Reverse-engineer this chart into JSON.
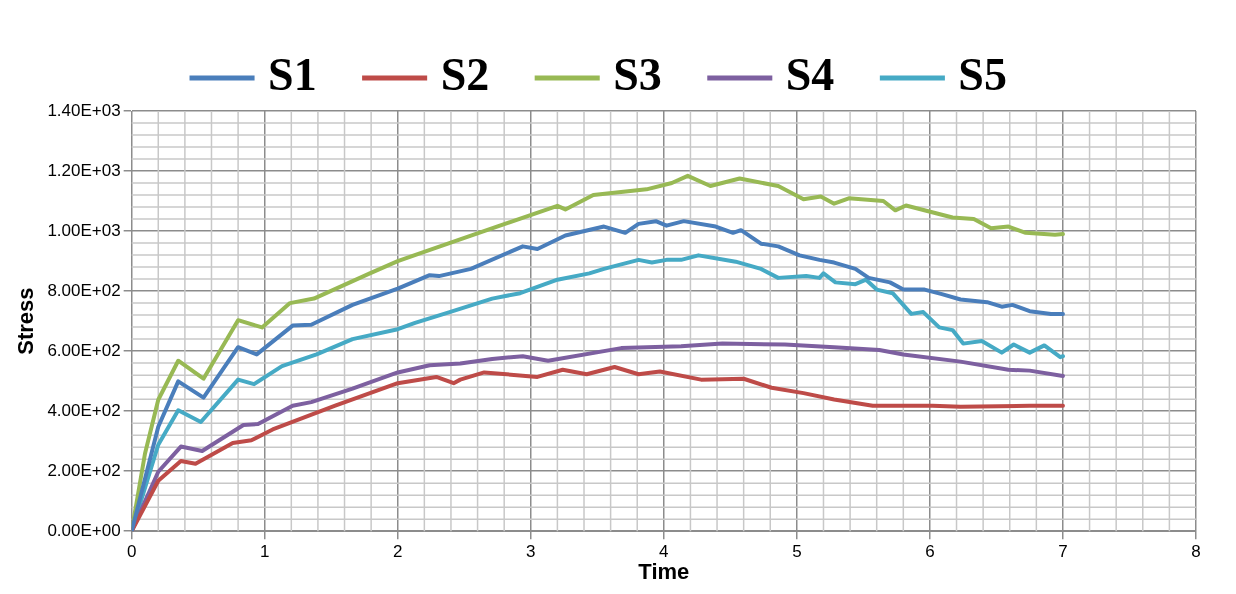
{
  "chart_data": {
    "type": "line",
    "xlabel": "Time",
    "ylabel": "Stress",
    "legend": "top",
    "grid": true,
    "marker": "none",
    "line_style": "solid",
    "xlim": [
      0,
      8
    ],
    "xticks": [
      0,
      1,
      2,
      3,
      4,
      5,
      6,
      7,
      8
    ],
    "ylim": [
      0,
      1400
    ],
    "yticks": [
      {
        "value": 0,
        "label": "0.00E+00"
      },
      {
        "value": 200,
        "label": "2.00E+02"
      },
      {
        "value": 400,
        "label": "4.00E+02"
      },
      {
        "value": 600,
        "label": "6.00E+02"
      },
      {
        "value": 800,
        "label": "8.00E+02"
      },
      {
        "value": 1000,
        "label": "1.00E+03"
      },
      {
        "value": 1200,
        "label": "1.20E+03"
      },
      {
        "value": 1400,
        "label": "1.40E+03"
      }
    ],
    "series": [
      {
        "name": "S1",
        "color": "#4a7ebb",
        "x": [
          0,
          0.2,
          0.35,
          0.54,
          0.8,
          0.94,
          1.21,
          1.35,
          1.66,
          2.0,
          2.24,
          2.31,
          2.55,
          2.94,
          3.05,
          3.26,
          3.55,
          3.71,
          3.81,
          3.94,
          4.02,
          4.15,
          4.39,
          4.52,
          4.58,
          4.73,
          4.86,
          5.02,
          5.17,
          5.28,
          5.44,
          5.54,
          5.7,
          5.8,
          5.96,
          6.09,
          6.23,
          6.43,
          6.54,
          6.62,
          6.75,
          6.91,
          7.0
        ],
        "values": [
          0,
          348,
          499,
          445,
          613,
          589,
          685,
          688,
          754,
          808,
          853,
          850,
          874,
          949,
          940,
          985,
          1015,
          994,
          1024,
          1033,
          1018,
          1033,
          1015,
          994,
          1003,
          958,
          949,
          919,
          904,
          895,
          874,
          844,
          829,
          805,
          805,
          790,
          772,
          763,
          748,
          754,
          733,
          724,
          724
        ]
      },
      {
        "name": "S2",
        "color": "#be4b48",
        "x": [
          0,
          0.2,
          0.37,
          0.48,
          0.76,
          0.9,
          1.06,
          1.53,
          2.0,
          2.29,
          2.42,
          2.47,
          2.65,
          3.05,
          3.24,
          3.42,
          3.63,
          3.81,
          3.97,
          4.28,
          4.6,
          4.81,
          5.05,
          5.28,
          5.57,
          6.02,
          6.23,
          6.75,
          7.0
        ],
        "values": [
          0,
          168,
          234,
          225,
          294,
          303,
          339,
          418,
          493,
          514,
          493,
          505,
          529,
          514,
          538,
          523,
          547,
          523,
          532,
          505,
          508,
          478,
          460,
          439,
          418,
          418,
          415,
          418,
          418
        ]
      },
      {
        "name": "S3",
        "color": "#98b954",
        "x": [
          0,
          0.1,
          0.2,
          0.35,
          0.54,
          0.8,
          0.98,
          1.19,
          1.37,
          1.79,
          2.0,
          2.55,
          3.2,
          3.26,
          3.47,
          3.87,
          4.06,
          4.18,
          4.35,
          4.57,
          4.86,
          5.05,
          5.18,
          5.28,
          5.39,
          5.65,
          5.74,
          5.82,
          6.17,
          6.33,
          6.46,
          6.59,
          6.72,
          6.94,
          7.0
        ],
        "values": [
          0,
          258,
          438,
          568,
          508,
          703,
          679,
          760,
          775,
          859,
          900,
          985,
          1084,
          1072,
          1120,
          1139,
          1160,
          1184,
          1150,
          1175,
          1150,
          1106,
          1115,
          1091,
          1109,
          1100,
          1069,
          1085,
          1045,
          1040,
          1009,
          1015,
          994,
          988,
          990
        ]
      },
      {
        "name": "S4",
        "color": "#7d60a0",
        "x": [
          0,
          0.2,
          0.37,
          0.53,
          0.84,
          0.95,
          1.21,
          1.35,
          1.66,
          2.0,
          2.24,
          2.47,
          2.71,
          2.94,
          3.13,
          3.68,
          4.13,
          4.44,
          4.91,
          5.28,
          5.62,
          5.8,
          6.23,
          6.59,
          6.75,
          7.0
        ],
        "values": [
          0,
          198,
          282,
          267,
          354,
          357,
          418,
          430,
          475,
          529,
          553,
          559,
          574,
          583,
          568,
          610,
          616,
          625,
          622,
          613,
          604,
          589,
          565,
          538,
          535,
          517
        ]
      },
      {
        "name": "S5",
        "color": "#46aac5",
        "x": [
          0,
          0.2,
          0.35,
          0.52,
          0.8,
          0.92,
          1.13,
          1.39,
          1.66,
          2.0,
          2.13,
          2.39,
          2.71,
          2.92,
          3.2,
          3.44,
          3.55,
          3.81,
          3.91,
          4.02,
          4.13,
          4.26,
          4.54,
          4.73,
          4.86,
          5.07,
          5.17,
          5.2,
          5.29,
          5.44,
          5.52,
          5.6,
          5.72,
          5.86,
          5.95,
          6.07,
          6.17,
          6.25,
          6.39,
          6.54,
          6.63,
          6.75,
          6.86,
          6.98,
          7.0
        ],
        "values": [
          0,
          288,
          403,
          364,
          505,
          490,
          550,
          589,
          640,
          673,
          694,
          730,
          775,
          793,
          838,
          859,
          874,
          904,
          895,
          904,
          904,
          919,
          898,
          874,
          844,
          850,
          844,
          859,
          829,
          823,
          838,
          805,
          793,
          724,
          730,
          679,
          670,
          625,
          634,
          595,
          622,
          595,
          619,
          580,
          583
        ]
      }
    ]
  }
}
